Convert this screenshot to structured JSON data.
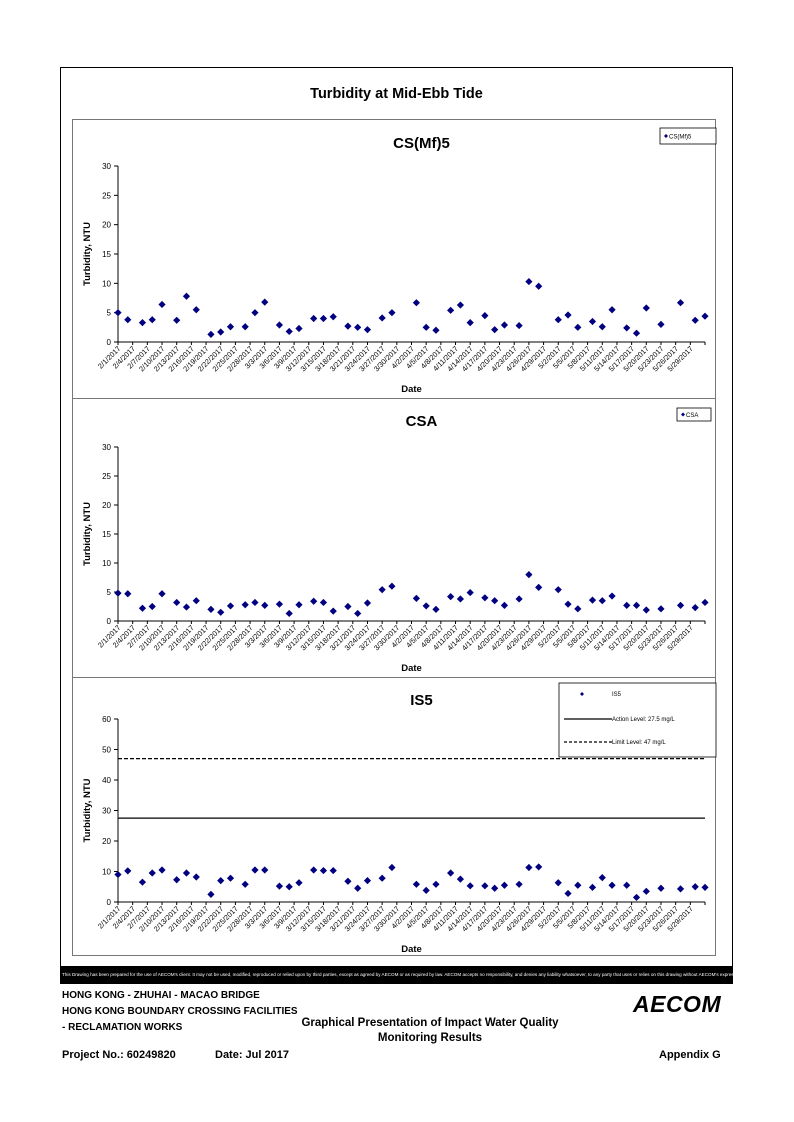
{
  "page": {
    "title": "Turbidity at Mid-Ebb Tide",
    "disclaimer": "This Drawing has been prepared for the use of AECOM's client. It may not be used, modified, reproduced or relied upon by third parties, except as agreed by AECOM or as required by law. AECOM accepts no responsibility, and denies any liability whatsoever, to any party that uses or relies on this drawing without AECOM's express written consent.",
    "footer": {
      "line1": "HONG KONG - ZHUHAI - MACAO BRIDGE",
      "line2": "HONG KONG BOUNDARY CROSSING FACILITIES",
      "line3": "- RECLAMATION WORKS",
      "doc_title_1": "Graphical Presentation of Impact Water Quality",
      "doc_title_2": "Monitoring Results",
      "project": "Project No.: 60249820",
      "date": "Date: Jul 2017",
      "appendix": "Appendix G",
      "logo": "AECOM"
    }
  },
  "chart_data": [
    {
      "type": "scatter",
      "title": "CS(Mf)5",
      "xlabel": "Date",
      "ylabel": "Turbidity, NTU",
      "ylim": [
        0,
        30
      ],
      "yticks": [
        "0",
        "5",
        "10",
        "15",
        "20",
        "25",
        "30"
      ],
      "xticks": [
        "2/1/2017",
        "2/4/2017",
        "2/7/2017",
        "2/10/2017",
        "2/13/2017",
        "2/16/2017",
        "2/19/2017",
        "2/22/2017",
        "2/25/2017",
        "2/28/2017",
        "3/3/2017",
        "3/6/2017",
        "3/9/2017",
        "3/12/2017",
        "3/15/2017",
        "3/18/2017",
        "3/21/2017",
        "3/24/2017",
        "3/27/2017",
        "3/30/2017",
        "4/2/2017",
        "4/5/2017",
        "4/8/2017",
        "4/11/2017",
        "4/14/2017",
        "4/17/2017",
        "4/20/2017",
        "4/23/2017",
        "4/26/2017",
        "4/29/2017",
        "5/2/2017",
        "5/5/2017",
        "5/8/2017",
        "5/11/2017",
        "5/14/2017",
        "5/17/2017",
        "5/20/2017",
        "5/23/2017",
        "5/26/2017",
        "5/29/2017"
      ],
      "legend_position": "top-right",
      "series": [
        {
          "name": "CS(Mf)5",
          "color": "#000080",
          "marker": "diamond",
          "x": [
            "2017-02-01",
            "2017-02-03",
            "2017-02-06",
            "2017-02-08",
            "2017-02-10",
            "2017-02-13",
            "2017-02-15",
            "2017-02-17",
            "2017-02-20",
            "2017-02-22",
            "2017-02-24",
            "2017-02-27",
            "2017-03-01",
            "2017-03-03",
            "2017-03-06",
            "2017-03-08",
            "2017-03-10",
            "2017-03-13",
            "2017-03-15",
            "2017-03-17",
            "2017-03-20",
            "2017-03-22",
            "2017-03-24",
            "2017-03-27",
            "2017-03-29",
            "2017-04-03",
            "2017-04-05",
            "2017-04-07",
            "2017-04-10",
            "2017-04-12",
            "2017-04-14",
            "2017-04-17",
            "2017-04-19",
            "2017-04-21",
            "2017-04-24",
            "2017-04-26",
            "2017-04-28",
            "2017-05-02",
            "2017-05-04",
            "2017-05-06",
            "2017-05-09",
            "2017-05-11",
            "2017-05-13",
            "2017-05-16",
            "2017-05-18",
            "2017-05-20",
            "2017-05-23",
            "2017-05-27",
            "2017-05-30",
            "2017-06-01"
          ],
          "y": [
            5.0,
            3.8,
            3.3,
            3.8,
            6.4,
            3.7,
            7.8,
            5.5,
            1.3,
            1.7,
            2.6,
            2.6,
            5.0,
            6.8,
            2.9,
            1.8,
            2.3,
            4.0,
            4.0,
            4.3,
            2.7,
            2.5,
            2.1,
            4.1,
            5.0,
            6.7,
            2.5,
            2.0,
            5.4,
            6.3,
            3.3,
            4.5,
            2.1,
            2.9,
            2.8,
            10.3,
            9.5,
            3.8,
            4.6,
            2.5,
            3.5,
            2.6,
            5.5,
            2.4,
            1.5,
            5.8,
            3.0,
            6.7,
            3.7,
            4.4
          ]
        }
      ]
    },
    {
      "type": "scatter",
      "title": "CSA",
      "xlabel": "Date",
      "ylabel": "Turbidity, NTU",
      "ylim": [
        0,
        30
      ],
      "yticks": [
        "0",
        "5",
        "10",
        "15",
        "20",
        "25",
        "30"
      ],
      "xticks": [
        "2/1/2017",
        "2/4/2017",
        "2/7/2017",
        "2/10/2017",
        "2/13/2017",
        "2/16/2017",
        "2/19/2017",
        "2/22/2017",
        "2/25/2017",
        "2/28/2017",
        "3/3/2017",
        "3/6/2017",
        "3/9/2017",
        "3/12/2017",
        "3/15/2017",
        "3/18/2017",
        "3/21/2017",
        "3/24/2017",
        "3/27/2017",
        "3/30/2017",
        "4/2/2017",
        "4/5/2017",
        "4/8/2017",
        "4/11/2017",
        "4/14/2017",
        "4/17/2017",
        "4/20/2017",
        "4/23/2017",
        "4/26/2017",
        "4/29/2017",
        "5/2/2017",
        "5/5/2017",
        "5/8/2017",
        "5/11/2017",
        "5/14/2017",
        "5/17/2017",
        "5/20/2017",
        "5/23/2017",
        "5/26/2017",
        "5/29/2017"
      ],
      "legend_position": "top-right",
      "series": [
        {
          "name": "CSA",
          "color": "#000080",
          "marker": "diamond",
          "x": [
            "2017-02-01",
            "2017-02-03",
            "2017-02-06",
            "2017-02-08",
            "2017-02-10",
            "2017-02-13",
            "2017-02-15",
            "2017-02-17",
            "2017-02-20",
            "2017-02-22",
            "2017-02-24",
            "2017-02-27",
            "2017-03-01",
            "2017-03-03",
            "2017-03-06",
            "2017-03-08",
            "2017-03-10",
            "2017-03-13",
            "2017-03-15",
            "2017-03-17",
            "2017-03-20",
            "2017-03-22",
            "2017-03-24",
            "2017-03-27",
            "2017-03-29",
            "2017-04-03",
            "2017-04-05",
            "2017-04-07",
            "2017-04-10",
            "2017-04-12",
            "2017-04-14",
            "2017-04-17",
            "2017-04-19",
            "2017-04-21",
            "2017-04-24",
            "2017-04-26",
            "2017-04-28",
            "2017-05-02",
            "2017-05-04",
            "2017-05-06",
            "2017-05-09",
            "2017-05-11",
            "2017-05-13",
            "2017-05-16",
            "2017-05-18",
            "2017-05-20",
            "2017-05-23",
            "2017-05-27",
            "2017-05-30",
            "2017-06-01"
          ],
          "y": [
            4.8,
            4.7,
            2.2,
            2.5,
            4.7,
            3.2,
            2.4,
            3.5,
            2.0,
            1.5,
            2.6,
            2.8,
            3.2,
            2.7,
            2.9,
            1.3,
            2.8,
            3.4,
            3.2,
            1.7,
            2.5,
            1.3,
            3.1,
            5.4,
            6.0,
            3.9,
            2.6,
            2.0,
            4.2,
            3.8,
            4.9,
            4.0,
            3.5,
            2.7,
            3.8,
            8.0,
            5.8,
            5.4,
            2.9,
            2.1,
            3.6,
            3.5,
            4.3,
            2.7,
            2.7,
            1.9,
            2.1,
            2.7,
            2.3,
            3.2
          ]
        }
      ]
    },
    {
      "type": "scatter",
      "title": "IS5",
      "xlabel": "Date",
      "ylabel": "Turbidity, NTU",
      "ylim": [
        0,
        60
      ],
      "yticks": [
        "0",
        "10",
        "20",
        "30",
        "40",
        "50",
        "60"
      ],
      "xticks": [
        "2/1/2017",
        "2/4/2017",
        "2/7/2017",
        "2/10/2017",
        "2/13/2017",
        "2/16/2017",
        "2/19/2017",
        "2/22/2017",
        "2/25/2017",
        "2/28/2017",
        "3/3/2017",
        "3/6/2017",
        "3/9/2017",
        "3/12/2017",
        "3/15/2017",
        "3/18/2017",
        "3/21/2017",
        "3/24/2017",
        "3/27/2017",
        "3/30/2017",
        "4/2/2017",
        "4/5/2017",
        "4/8/2017",
        "4/11/2017",
        "4/14/2017",
        "4/17/2017",
        "4/20/2017",
        "4/23/2017",
        "4/26/2017",
        "4/29/2017",
        "5/2/2017",
        "5/5/2017",
        "5/8/2017",
        "5/11/2017",
        "5/14/2017",
        "5/17/2017",
        "5/20/2017",
        "5/23/2017",
        "5/26/2017",
        "5/29/2017"
      ],
      "legend_position": "top-right",
      "series": [
        {
          "name": "IS5",
          "color": "#000080",
          "marker": "diamond",
          "x": [
            "2017-02-01",
            "2017-02-03",
            "2017-02-06",
            "2017-02-08",
            "2017-02-10",
            "2017-02-13",
            "2017-02-15",
            "2017-02-17",
            "2017-02-20",
            "2017-02-22",
            "2017-02-24",
            "2017-02-27",
            "2017-03-01",
            "2017-03-03",
            "2017-03-06",
            "2017-03-08",
            "2017-03-10",
            "2017-03-13",
            "2017-03-15",
            "2017-03-17",
            "2017-03-20",
            "2017-03-22",
            "2017-03-24",
            "2017-03-27",
            "2017-03-29",
            "2017-04-03",
            "2017-04-05",
            "2017-04-07",
            "2017-04-10",
            "2017-04-12",
            "2017-04-14",
            "2017-04-17",
            "2017-04-19",
            "2017-04-21",
            "2017-04-24",
            "2017-04-26",
            "2017-04-28",
            "2017-05-02",
            "2017-05-04",
            "2017-05-06",
            "2017-05-09",
            "2017-05-11",
            "2017-05-13",
            "2017-05-16",
            "2017-05-18",
            "2017-05-20",
            "2017-05-23",
            "2017-05-27",
            "2017-05-30",
            "2017-06-01"
          ],
          "y": [
            9.0,
            10.2,
            6.5,
            9.5,
            10.5,
            7.3,
            9.5,
            8.2,
            2.5,
            7.0,
            7.8,
            5.8,
            10.5,
            10.5,
            5.2,
            5.0,
            6.3,
            10.5,
            10.3,
            10.3,
            6.8,
            4.5,
            7.0,
            7.8,
            11.3,
            5.8,
            3.8,
            5.8,
            9.5,
            7.5,
            5.3,
            5.3,
            4.5,
            5.5,
            5.8,
            11.3,
            11.5,
            6.3,
            2.8,
            5.5,
            4.8,
            8.0,
            5.5,
            5.5,
            1.5,
            3.5,
            4.5,
            4.3,
            5.0,
            4.8
          ]
        },
        {
          "name": "Action Level: 27.5 mg/L",
          "type": "line",
          "style": "solid",
          "y_value": 27.5
        },
        {
          "name": "Limit Level: 47 mg/L",
          "type": "line",
          "style": "dashed",
          "y_value": 47
        }
      ]
    }
  ]
}
